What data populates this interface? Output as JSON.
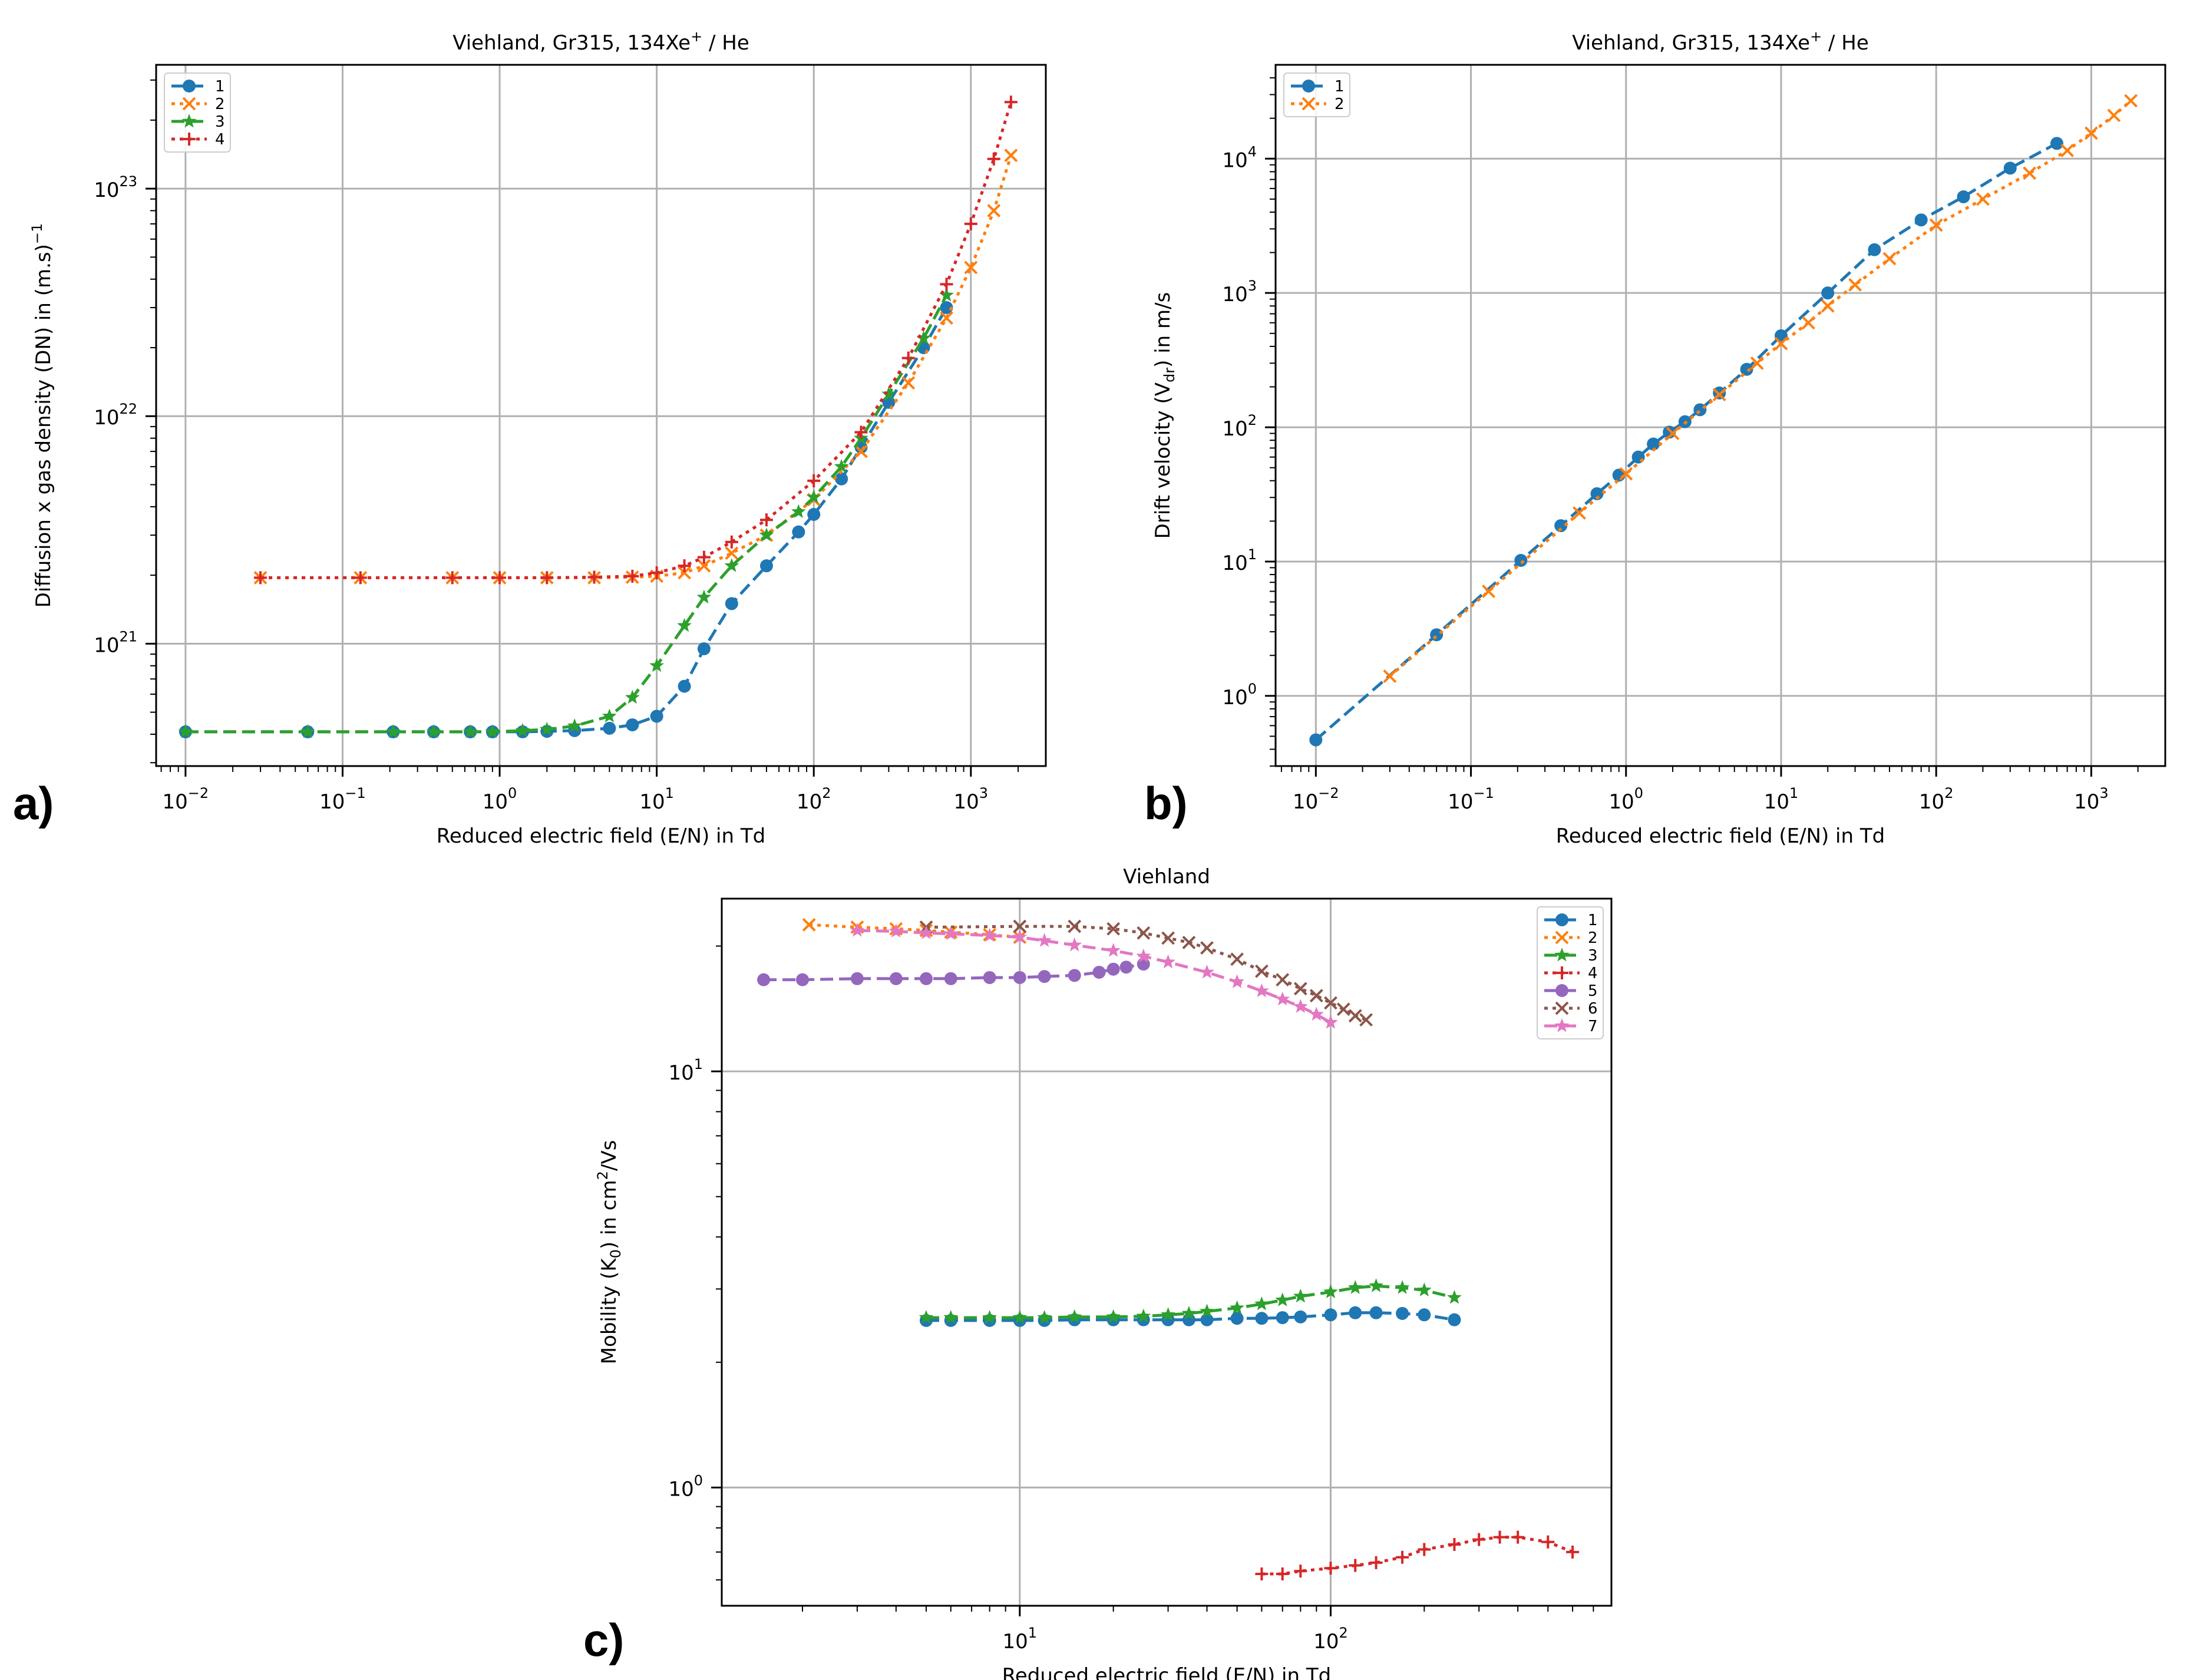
{
  "colors": {
    "s1": "#1f77b4",
    "s2": "#ff7f0e",
    "s3": "#2ca02c",
    "s4": "#d62728",
    "s5": "#9467bd",
    "s6": "#8c564b",
    "s7": "#e377c2",
    "grid": "#b0b0b0",
    "axis": "#000000"
  },
  "chart_data": [
    {
      "id": "a",
      "panel_label": "a)",
      "type": "line",
      "title": "Viehland, Gr315, 134Xe",
      "title_sup": "+",
      "title_tail": " / He",
      "xlabel": "Reduced electric field (E/N) in Td",
      "ylabel": "Diffusion x gas density (DN) in (m.s)",
      "ylabel_sup": "−1",
      "xscale": "log",
      "yscale": "log",
      "xlim": [
        0.0065,
        3000
      ],
      "ylim": [
        2.9e+20,
        3.5e+23
      ],
      "xticks": [
        {
          "v": 0.01,
          "b": "10",
          "e": "−2"
        },
        {
          "v": 0.1,
          "b": "10",
          "e": "−1"
        },
        {
          "v": 1,
          "b": "10",
          "e": "0"
        },
        {
          "v": 10,
          "b": "10",
          "e": "1"
        },
        {
          "v": 100,
          "b": "10",
          "e": "2"
        },
        {
          "v": 1000,
          "b": "10",
          "e": "3"
        }
      ],
      "yticks": [
        {
          "v": 1e+21,
          "b": "10",
          "e": "21"
        },
        {
          "v": 1e+22,
          "b": "10",
          "e": "22"
        },
        {
          "v": 1e+23,
          "b": "10",
          "e": "23"
        }
      ],
      "grid": true,
      "legend": "top-left",
      "series": [
        {
          "name": "1",
          "marker": "circle",
          "dash": "dash",
          "color": "s1",
          "x": [
            0.01,
            0.06,
            0.21,
            0.38,
            0.65,
            0.9,
            1.4,
            2,
            3,
            5,
            7,
            10,
            15,
            20,
            30,
            50,
            80,
            100,
            150,
            200,
            300,
            500,
            700
          ],
          "y": [
            4.1e+20,
            4.1e+20,
            4.1e+20,
            4.1e+20,
            4.1e+20,
            4.1e+20,
            4.1e+20,
            4.12e+20,
            4.15e+20,
            4.25e+20,
            4.4e+20,
            4.8e+20,
            6.5e+20,
            9.5e+20,
            1.5e+21,
            2.2e+21,
            3.1e+21,
            3.7e+21,
            5.3e+21,
            7.3e+21,
            1.15e+22,
            2e+22,
            3e+22
          ]
        },
        {
          "name": "2",
          "marker": "x",
          "dash": "dot",
          "color": "s2",
          "x": [
            0.03,
            0.13,
            0.5,
            1,
            2,
            4,
            7,
            10,
            15,
            20,
            30,
            50,
            100,
            200,
            400,
            700,
            1000,
            1400,
            1800
          ],
          "y": [
            1.95e+21,
            1.95e+21,
            1.95e+21,
            1.95e+21,
            1.95e+21,
            1.95e+21,
            1.96e+21,
            1.98e+21,
            2.05e+21,
            2.2e+21,
            2.5e+21,
            3e+21,
            4.3e+21,
            7e+21,
            1.4e+22,
            2.7e+22,
            4.5e+22,
            8e+22,
            1.4e+23
          ]
        },
        {
          "name": "3",
          "marker": "star",
          "dash": "dash",
          "color": "s3",
          "x": [
            0.01,
            0.06,
            0.21,
            0.38,
            0.65,
            0.9,
            1.4,
            2,
            3,
            5,
            7,
            10,
            15,
            20,
            30,
            50,
            80,
            100,
            150,
            200,
            300,
            500,
            700
          ],
          "y": [
            4.1e+20,
            4.1e+20,
            4.1e+20,
            4.1e+20,
            4.1e+20,
            4.1e+20,
            4.15e+20,
            4.2e+20,
            4.35e+20,
            4.8e+20,
            5.8e+20,
            8e+20,
            1.2e+21,
            1.6e+21,
            2.2e+21,
            3e+21,
            3.8e+21,
            4.4e+21,
            6e+21,
            8e+21,
            1.25e+22,
            2.2e+22,
            3.4e+22
          ]
        },
        {
          "name": "4",
          "marker": "plus",
          "dash": "dot",
          "color": "s4",
          "x": [
            0.03,
            0.13,
            0.5,
            1,
            2,
            4,
            7,
            10,
            15,
            20,
            30,
            50,
            100,
            200,
            400,
            700,
            1000,
            1400,
            1800
          ],
          "y": [
            1.95e+21,
            1.95e+21,
            1.95e+21,
            1.95e+21,
            1.95e+21,
            1.96e+21,
            1.98e+21,
            2.05e+21,
            2.2e+21,
            2.4e+21,
            2.8e+21,
            3.5e+21,
            5.2e+21,
            8.5e+21,
            1.8e+22,
            3.8e+22,
            7e+22,
            1.35e+23,
            2.4e+23
          ]
        }
      ]
    },
    {
      "id": "b",
      "panel_label": "b)",
      "type": "line",
      "title": "Viehland, Gr315, 134Xe",
      "title_sup": "+",
      "title_tail": " / He",
      "xlabel": "Reduced electric field (E/N) in Td",
      "ylabel": "Drift velocity (V",
      "ylabel_sub": "dr",
      "ylabel_tail": ") in m/s",
      "xscale": "log",
      "yscale": "log",
      "xlim": [
        0.0055,
        3000
      ],
      "ylim": [
        0.3,
        50000
      ],
      "xticks": [
        {
          "v": 0.01,
          "b": "10",
          "e": "−2"
        },
        {
          "v": 0.1,
          "b": "10",
          "e": "−1"
        },
        {
          "v": 1,
          "b": "10",
          "e": "0"
        },
        {
          "v": 10,
          "b": "10",
          "e": "1"
        },
        {
          "v": 100,
          "b": "10",
          "e": "2"
        },
        {
          "v": 1000,
          "b": "10",
          "e": "3"
        }
      ],
      "yticks": [
        {
          "v": 1,
          "b": "10",
          "e": "0"
        },
        {
          "v": 10,
          "b": "10",
          "e": "1"
        },
        {
          "v": 100,
          "b": "10",
          "e": "2"
        },
        {
          "v": 1000,
          "b": "10",
          "e": "3"
        },
        {
          "v": 10000,
          "b": "10",
          "e": "4"
        }
      ],
      "grid": true,
      "legend": "top-left",
      "series": [
        {
          "name": "1",
          "marker": "circle",
          "dash": "dash",
          "color": "s1",
          "x": [
            0.01,
            0.06,
            0.21,
            0.38,
            0.65,
            0.9,
            1.2,
            1.5,
            1.9,
            2.4,
            3,
            4,
            6,
            10,
            20,
            40,
            80,
            150,
            300,
            600
          ],
          "y": [
            0.47,
            2.85,
            10.2,
            18.5,
            32,
            44,
            60,
            75,
            92,
            110,
            135,
            180,
            270,
            480,
            1000,
            2100,
            3500,
            5200,
            8500,
            13000
          ]
        },
        {
          "name": "2",
          "marker": "x",
          "dash": "dot",
          "color": "s2",
          "x": [
            0.03,
            0.13,
            0.5,
            1,
            2,
            4,
            7,
            10,
            15,
            20,
            30,
            50,
            100,
            200,
            400,
            700,
            1000,
            1400,
            1800
          ],
          "y": [
            1.4,
            6.0,
            23,
            45,
            90,
            175,
            300,
            420,
            600,
            800,
            1150,
            1800,
            3200,
            5000,
            7800,
            11500,
            15500,
            21000,
            27000
          ]
        }
      ]
    },
    {
      "id": "c",
      "panel_label": "c)",
      "type": "line",
      "title": "Viehland",
      "xlabel": "Reduced electric field (E/N) in Td",
      "ylabel": "Mobility (K",
      "ylabel_sub": "0",
      "ylabel_tail": ") in cm",
      "ylabel_sup": "2",
      "ylabel_end": "/Vs",
      "xscale": "log",
      "yscale": "log",
      "xlim": [
        1.1,
        800
      ],
      "ylim": [
        0.52,
        26
      ],
      "xticks": [
        {
          "v": 10,
          "b": "10",
          "e": "1"
        },
        {
          "v": 100,
          "b": "10",
          "e": "2"
        }
      ],
      "yticks": [
        {
          "v": 1,
          "b": "10",
          "e": "0"
        },
        {
          "v": 10,
          "b": "10",
          "e": "1"
        }
      ],
      "grid": true,
      "legend": "top-right",
      "series": [
        {
          "name": "1",
          "marker": "circle",
          "dash": "dash",
          "color": "s1",
          "x": [
            5,
            6,
            8,
            10,
            12,
            15,
            20,
            25,
            30,
            35,
            40,
            50,
            60,
            70,
            80,
            100,
            120,
            140,
            170,
            200,
            250
          ],
          "y": [
            2.52,
            2.52,
            2.52,
            2.52,
            2.52,
            2.53,
            2.53,
            2.53,
            2.53,
            2.53,
            2.53,
            2.55,
            2.55,
            2.56,
            2.57,
            2.6,
            2.63,
            2.63,
            2.62,
            2.6,
            2.53
          ]
        },
        {
          "name": "2",
          "marker": "x",
          "dash": "dot",
          "color": "s2",
          "x": [
            2.1,
            3,
            4,
            5,
            6,
            8,
            10
          ],
          "y": [
            22.5,
            22.2,
            22.0,
            21.8,
            21.6,
            21.3,
            21.0
          ]
        },
        {
          "name": "3",
          "marker": "star",
          "dash": "dash",
          "color": "s3",
          "x": [
            5,
            6,
            8,
            10,
            12,
            15,
            20,
            25,
            30,
            35,
            40,
            50,
            60,
            70,
            80,
            100,
            120,
            140,
            170,
            200,
            250
          ],
          "y": [
            2.56,
            2.56,
            2.56,
            2.56,
            2.56,
            2.57,
            2.57,
            2.58,
            2.6,
            2.62,
            2.65,
            2.7,
            2.76,
            2.82,
            2.88,
            2.95,
            3.02,
            3.05,
            3.02,
            2.98,
            2.86
          ]
        },
        {
          "name": "4",
          "marker": "plus",
          "dash": "dot",
          "color": "s4",
          "x": [
            60,
            70,
            80,
            100,
            120,
            140,
            170,
            200,
            250,
            300,
            350,
            400,
            500,
            600
          ],
          "y": [
            0.62,
            0.62,
            0.63,
            0.64,
            0.65,
            0.66,
            0.68,
            0.71,
            0.73,
            0.75,
            0.76,
            0.76,
            0.74,
            0.7
          ]
        },
        {
          "name": "5",
          "marker": "circle",
          "dash": "dash",
          "color": "s5",
          "x": [
            1.5,
            2,
            3,
            4,
            5,
            6,
            8,
            10,
            12,
            15,
            18,
            20,
            22,
            25
          ],
          "y": [
            16.6,
            16.6,
            16.7,
            16.7,
            16.7,
            16.7,
            16.8,
            16.8,
            16.9,
            17.0,
            17.3,
            17.6,
            17.8,
            18.1
          ]
        },
        {
          "name": "6",
          "marker": "x",
          "dash": "dot",
          "color": "s6",
          "x": [
            5,
            10,
            15,
            20,
            25,
            30,
            35,
            40,
            50,
            60,
            70,
            80,
            90,
            100,
            110,
            120,
            130
          ],
          "y": [
            22.2,
            22.3,
            22.3,
            22.0,
            21.5,
            20.9,
            20.4,
            19.8,
            18.6,
            17.4,
            16.6,
            15.8,
            15.2,
            14.6,
            14.1,
            13.6,
            13.3
          ]
        },
        {
          "name": "7",
          "marker": "star",
          "dash": "dash",
          "color": "s7",
          "x": [
            3,
            4,
            5,
            6,
            8,
            10,
            12,
            15,
            20,
            25,
            30,
            40,
            50,
            60,
            70,
            80,
            90,
            100
          ],
          "y": [
            21.8,
            21.7,
            21.5,
            21.4,
            21.2,
            21.0,
            20.6,
            20.1,
            19.5,
            18.9,
            18.3,
            17.3,
            16.4,
            15.6,
            14.9,
            14.3,
            13.7,
            13.1
          ]
        }
      ]
    }
  ]
}
